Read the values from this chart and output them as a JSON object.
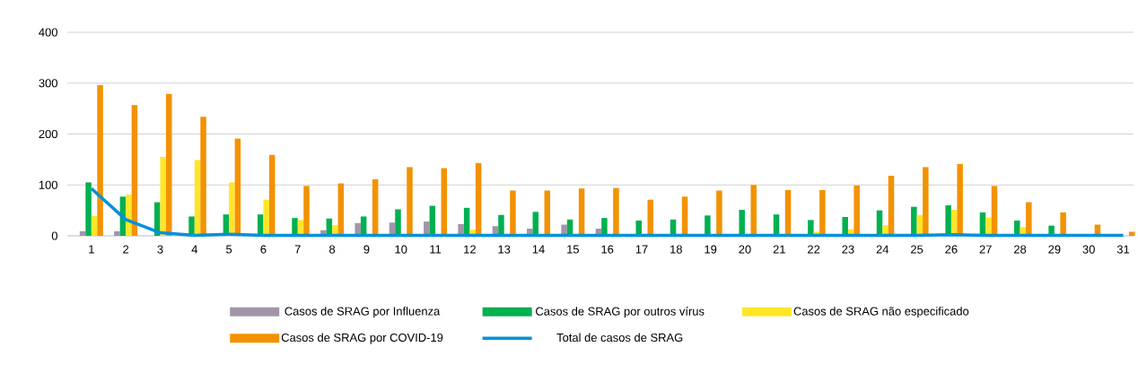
{
  "chart_data": {
    "type": "bar",
    "categories": [
      "1",
      "2",
      "3",
      "4",
      "5",
      "6",
      "7",
      "8",
      "9",
      "10",
      "11",
      "12",
      "13",
      "14",
      "15",
      "16",
      "17",
      "18",
      "19",
      "20",
      "21",
      "22",
      "23",
      "24",
      "25",
      "26",
      "27",
      "28",
      "29",
      "30",
      "31"
    ],
    "series": [
      {
        "name": "Casos de SRAG por Influenza",
        "color": "#a295aa",
        "values": [
          9,
          9,
          null,
          0,
          0,
          0,
          0,
          11,
          25,
          26,
          28,
          23,
          19,
          14,
          22,
          14,
          null,
          null,
          null,
          null,
          0,
          0,
          0,
          0,
          0,
          0,
          0,
          0,
          0,
          0,
          0
        ]
      },
      {
        "name": "Casos de SRAG por outros vírus",
        "color": "#00b050",
        "values": [
          105,
          77,
          66,
          38,
          42,
          42,
          35,
          34,
          38,
          52,
          59,
          55,
          41,
          47,
          32,
          35,
          30,
          32,
          40,
          51,
          42,
          31,
          37,
          50,
          57,
          60,
          46,
          30,
          20,
          null,
          0
        ]
      },
      {
        "name": "Casos de SRAG não especificado",
        "color": "#ffe628",
        "values": [
          39,
          81,
          155,
          149,
          105,
          71,
          31,
          21,
          0,
          null,
          2,
          12,
          0,
          0,
          0,
          0,
          0,
          0,
          0,
          0,
          0,
          8,
          13,
          21,
          41,
          51,
          36,
          17,
          null,
          0,
          0
        ]
      },
      {
        "name": "Casos de SRAG por COVID-19",
        "color": "#f39200",
        "values": [
          296,
          257,
          279,
          234,
          191,
          159,
          98,
          103,
          111,
          135,
          133,
          143,
          89,
          89,
          93,
          94,
          71,
          77,
          89,
          100,
          90,
          90,
          99,
          118,
          135,
          141,
          98,
          66,
          46,
          22,
          8
        ]
      },
      {
        "name": "Total de casos de SRAG",
        "type": "line",
        "color": "#0091d9",
        "values": [
          93,
          32,
          6,
          1,
          3,
          1,
          1,
          1,
          1,
          1,
          1,
          1,
          1,
          1,
          1,
          1,
          1,
          1,
          1,
          1,
          1,
          1,
          1,
          1,
          1,
          2,
          1,
          1,
          1,
          1,
          1
        ]
      }
    ],
    "ylim": [
      0,
      400
    ],
    "yticks": [
      0,
      100,
      200,
      300,
      400
    ],
    "grid": "y",
    "legend": "bottom"
  }
}
